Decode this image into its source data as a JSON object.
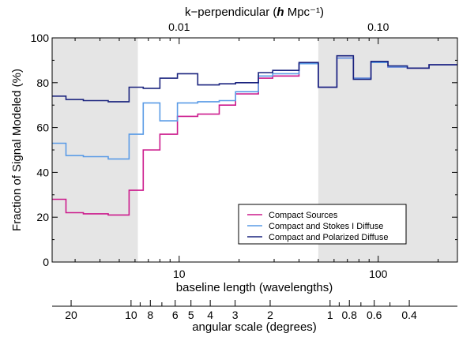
{
  "chart_data": {
    "type": "line",
    "title": "",
    "xlabel": "baseline length (wavelengths)",
    "ylabel": "Fraction of Signal Modeled (%)",
    "top_axis_label_prefix": "k−perpendicular (",
    "top_axis_label_h": "h",
    "top_axis_label_suffix": " Mpc⁻¹)",
    "angular_axis_label": "angular scale (degrees)",
    "x_scale": "log",
    "xlim": [
      2.3,
      250
    ],
    "ylim": [
      0,
      100
    ],
    "y_ticks": [
      0,
      20,
      40,
      60,
      80,
      100
    ],
    "y_tick_labels": [
      "0",
      "20",
      "40",
      "60",
      "80",
      "100"
    ],
    "x_ticks": [
      10,
      100
    ],
    "x_tick_labels": [
      "10",
      "100"
    ],
    "top_ticks": [
      0.01,
      0.1
    ],
    "top_tick_labels": [
      "0.01",
      "0.10"
    ],
    "top_axis_baseline_per_k": 1000,
    "angular_ticks": [
      20,
      10,
      8,
      6,
      5,
      4,
      3,
      2,
      1,
      0.8,
      0.6,
      0.4
    ],
    "angular_tick_labels": [
      "20",
      "10",
      "8",
      "6",
      "5",
      "4",
      "3",
      "2",
      "1",
      "0.8",
      "0.6",
      "0.4"
    ],
    "angular_minor_ticks": [
      9,
      7,
      0.9,
      0.7,
      0.5
    ],
    "angular_conversion_deg_wavelength": 57.3,
    "shaded_regions": [
      [
        2.3,
        6.2
      ],
      [
        50,
        250
      ]
    ],
    "shade_color": "#e5e5e5",
    "legend_position": "lower-right",
    "bin_edges": [
      2.3,
      2.7,
      3.3,
      4.4,
      5.6,
      6.6,
      8,
      9.8,
      12.4,
      15.9,
      19.2,
      25,
      29.5,
      40,
      50,
      62,
      75,
      92,
      112,
      140,
      180,
      250
    ],
    "series": [
      {
        "name": "Compact Sources",
        "color": "#cc1a8c",
        "values": [
          28,
          22,
          21.5,
          21,
          32,
          50,
          57,
          65,
          66,
          70,
          75,
          82,
          83,
          88.5,
          78,
          91,
          82,
          89,
          87,
          86.5,
          88
        ]
      },
      {
        "name": "Compact and Stokes I Diffuse",
        "color": "#5a9be6",
        "values": [
          53,
          47.5,
          47,
          46,
          57,
          71,
          63,
          71,
          71.5,
          72,
          76,
          83,
          84,
          88.5,
          78,
          91,
          82,
          89,
          87,
          86.5,
          88
        ]
      },
      {
        "name": "Compact and Polarized Diffuse",
        "color": "#1a237e",
        "values": [
          74,
          72.5,
          72,
          71.5,
          78,
          77.5,
          82,
          84,
          79,
          79.5,
          80,
          84.5,
          85.5,
          89,
          78,
          92,
          81.5,
          89.5,
          87.5,
          86.5,
          88
        ]
      }
    ]
  }
}
